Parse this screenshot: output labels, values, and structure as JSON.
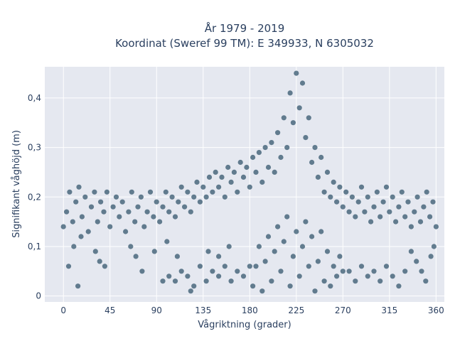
{
  "chart_data": {
    "type": "scatter",
    "title_lines": [
      "År 1979 - 2019",
      "Koordinat (Sweref 99 TM): E 349933, N 6305032"
    ],
    "xlabel": "Vågriktning (grader)",
    "ylabel": "Signifikant våghöjd (m)",
    "xlim": [
      -18,
      368
    ],
    "ylim": [
      -0.012,
      0.463
    ],
    "xticks": [
      0,
      45,
      90,
      135,
      180,
      225,
      270,
      315,
      360
    ],
    "xtick_labels": [
      "0",
      "45",
      "90",
      "135",
      "180",
      "225",
      "270",
      "315",
      "360"
    ],
    "yticks": [
      0,
      0.1,
      0.2,
      0.3,
      0.4
    ],
    "ytick_labels": [
      "0",
      "0,1",
      "0,2",
      "0,3",
      "0,4"
    ],
    "grid": true,
    "background": "#e5e8f0",
    "marker_color": "#34576d",
    "series": [
      {
        "points": [
          [
            0,
            0.14
          ],
          [
            3,
            0.17
          ],
          [
            6,
            0.21
          ],
          [
            9,
            0.15
          ],
          [
            12,
            0.19
          ],
          [
            15,
            0.22
          ],
          [
            18,
            0.16
          ],
          [
            21,
            0.2
          ],
          [
            24,
            0.13
          ],
          [
            27,
            0.18
          ],
          [
            30,
            0.21
          ],
          [
            33,
            0.15
          ],
          [
            36,
            0.19
          ],
          [
            39,
            0.17
          ],
          [
            42,
            0.21
          ],
          [
            45,
            0.14
          ],
          [
            48,
            0.18
          ],
          [
            51,
            0.2
          ],
          [
            54,
            0.16
          ],
          [
            57,
            0.19
          ],
          [
            60,
            0.13
          ],
          [
            63,
            0.17
          ],
          [
            66,
            0.21
          ],
          [
            69,
            0.15
          ],
          [
            72,
            0.18
          ],
          [
            75,
            0.2
          ],
          [
            78,
            0.14
          ],
          [
            81,
            0.17
          ],
          [
            84,
            0.21
          ],
          [
            87,
            0.16
          ],
          [
            90,
            0.19
          ],
          [
            93,
            0.15
          ],
          [
            96,
            0.18
          ],
          [
            99,
            0.21
          ],
          [
            102,
            0.17
          ],
          [
            105,
            0.2
          ],
          [
            108,
            0.16
          ],
          [
            111,
            0.19
          ],
          [
            114,
            0.22
          ],
          [
            117,
            0.18
          ],
          [
            120,
            0.21
          ],
          [
            123,
            0.17
          ],
          [
            126,
            0.2
          ],
          [
            129,
            0.23
          ],
          [
            132,
            0.19
          ],
          [
            135,
            0.22
          ],
          [
            138,
            0.2
          ],
          [
            141,
            0.24
          ],
          [
            144,
            0.21
          ],
          [
            147,
            0.25
          ],
          [
            150,
            0.22
          ],
          [
            153,
            0.24
          ],
          [
            156,
            0.2
          ],
          [
            159,
            0.26
          ],
          [
            162,
            0.23
          ],
          [
            165,
            0.25
          ],
          [
            168,
            0.21
          ],
          [
            171,
            0.27
          ],
          [
            174,
            0.24
          ],
          [
            177,
            0.26
          ],
          [
            180,
            0.22
          ],
          [
            183,
            0.28
          ],
          [
            186,
            0.25
          ],
          [
            189,
            0.29
          ],
          [
            192,
            0.23
          ],
          [
            195,
            0.3
          ],
          [
            198,
            0.26
          ],
          [
            201,
            0.31
          ],
          [
            204,
            0.25
          ],
          [
            207,
            0.33
          ],
          [
            210,
            0.28
          ],
          [
            213,
            0.36
          ],
          [
            216,
            0.3
          ],
          [
            219,
            0.41
          ],
          [
            222,
            0.35
          ],
          [
            225,
            0.45
          ],
          [
            228,
            0.38
          ],
          [
            231,
            0.43
          ],
          [
            234,
            0.32
          ],
          [
            237,
            0.36
          ],
          [
            240,
            0.27
          ],
          [
            243,
            0.3
          ],
          [
            246,
            0.24
          ],
          [
            249,
            0.28
          ],
          [
            252,
            0.21
          ],
          [
            255,
            0.25
          ],
          [
            258,
            0.2
          ],
          [
            261,
            0.23
          ],
          [
            264,
            0.19
          ],
          [
            267,
            0.22
          ],
          [
            270,
            0.18
          ],
          [
            273,
            0.21
          ],
          [
            276,
            0.17
          ],
          [
            279,
            0.2
          ],
          [
            282,
            0.16
          ],
          [
            285,
            0.19
          ],
          [
            288,
            0.22
          ],
          [
            291,
            0.17
          ],
          [
            294,
            0.2
          ],
          [
            297,
            0.15
          ],
          [
            300,
            0.18
          ],
          [
            303,
            0.21
          ],
          [
            306,
            0.16
          ],
          [
            309,
            0.19
          ],
          [
            312,
            0.22
          ],
          [
            315,
            0.17
          ],
          [
            318,
            0.2
          ],
          [
            321,
            0.15
          ],
          [
            324,
            0.18
          ],
          [
            327,
            0.21
          ],
          [
            330,
            0.16
          ],
          [
            333,
            0.19
          ],
          [
            336,
            0.14
          ],
          [
            339,
            0.17
          ],
          [
            342,
            0.2
          ],
          [
            345,
            0.15
          ],
          [
            348,
            0.18
          ],
          [
            351,
            0.21
          ],
          [
            354,
            0.16
          ],
          [
            357,
            0.19
          ],
          [
            360,
            0.14
          ],
          [
            183,
            0.02
          ],
          [
            186,
            0.06
          ],
          [
            189,
            0.1
          ],
          [
            192,
            0.01
          ],
          [
            195,
            0.07
          ],
          [
            198,
            0.12
          ],
          [
            201,
            0.03
          ],
          [
            204,
            0.09
          ],
          [
            207,
            0.14
          ],
          [
            210,
            0.05
          ],
          [
            213,
            0.11
          ],
          [
            216,
            0.16
          ],
          [
            219,
            0.02
          ],
          [
            222,
            0.08
          ],
          [
            225,
            0.13
          ],
          [
            228,
            0.04
          ],
          [
            231,
            0.1
          ],
          [
            234,
            0.15
          ],
          [
            237,
            0.06
          ],
          [
            240,
            0.12
          ],
          [
            243,
            0.01
          ],
          [
            246,
            0.07
          ],
          [
            249,
            0.13
          ],
          [
            252,
            0.03
          ],
          [
            255,
            0.09
          ],
          [
            258,
            0.02
          ],
          [
            261,
            0.06
          ],
          [
            264,
            0.04
          ],
          [
            267,
            0.08
          ],
          [
            270,
            0.05
          ],
          [
            96,
            0.03
          ],
          [
            102,
            0.04
          ],
          [
            108,
            0.03
          ],
          [
            114,
            0.05
          ],
          [
            120,
            0.04
          ],
          [
            126,
            0.02
          ],
          [
            132,
            0.06
          ],
          [
            138,
            0.03
          ],
          [
            144,
            0.05
          ],
          [
            150,
            0.04
          ],
          [
            156,
            0.06
          ],
          [
            162,
            0.03
          ],
          [
            168,
            0.05
          ],
          [
            174,
            0.04
          ],
          [
            180,
            0.06
          ],
          [
            276,
            0.05
          ],
          [
            282,
            0.03
          ],
          [
            288,
            0.06
          ],
          [
            294,
            0.04
          ],
          [
            300,
            0.05
          ],
          [
            306,
            0.03
          ],
          [
            312,
            0.06
          ],
          [
            318,
            0.04
          ],
          [
            324,
            0.02
          ],
          [
            330,
            0.05
          ],
          [
            5,
            0.06
          ],
          [
            10,
            0.1
          ],
          [
            14,
            0.02
          ],
          [
            17,
            0.12
          ],
          [
            31,
            0.09
          ],
          [
            35,
            0.07
          ],
          [
            40,
            0.06
          ],
          [
            65,
            0.1
          ],
          [
            70,
            0.08
          ],
          [
            76,
            0.05
          ],
          [
            88,
            0.09
          ],
          [
            100,
            0.11
          ],
          [
            110,
            0.08
          ],
          [
            123,
            0.01
          ],
          [
            140,
            0.09
          ],
          [
            150,
            0.08
          ],
          [
            160,
            0.1
          ],
          [
            336,
            0.09
          ],
          [
            341,
            0.07
          ],
          [
            346,
            0.05
          ],
          [
            350,
            0.03
          ],
          [
            355,
            0.08
          ],
          [
            358,
            0.1
          ]
        ]
      }
    ]
  }
}
